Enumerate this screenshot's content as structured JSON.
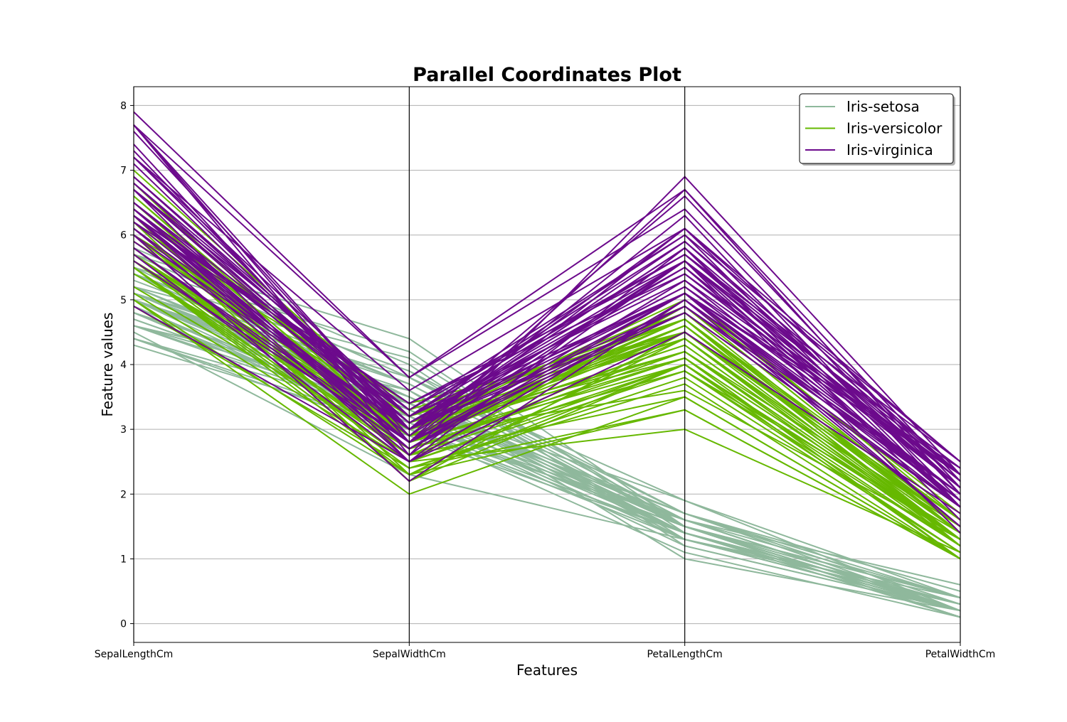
{
  "chart_data": {
    "type": "parallel_coordinates",
    "title": "Parallel Coordinates Plot",
    "xlabel": "Features",
    "ylabel": "Feature values",
    "categories": [
      "SepalLengthCm",
      "SepalWidthCm",
      "PetalLengthCm",
      "PetalWidthCm"
    ],
    "ylim": [
      -0.29,
      8.29
    ],
    "yticks": [
      "0",
      "1",
      "2",
      "3",
      "4",
      "5",
      "6",
      "7",
      "8"
    ],
    "grid": true,
    "legend_position": "top-right",
    "series": [
      {
        "name": "Iris-setosa",
        "color": "#8fb89c",
        "rows": [
          [
            5.1,
            3.5,
            1.4,
            0.2
          ],
          [
            4.9,
            3.0,
            1.4,
            0.2
          ],
          [
            4.7,
            3.2,
            1.3,
            0.2
          ],
          [
            4.6,
            3.1,
            1.5,
            0.2
          ],
          [
            5.0,
            3.6,
            1.4,
            0.2
          ],
          [
            5.4,
            3.9,
            1.7,
            0.4
          ],
          [
            4.6,
            3.4,
            1.4,
            0.3
          ],
          [
            5.0,
            3.4,
            1.5,
            0.2
          ],
          [
            4.4,
            2.9,
            1.4,
            0.2
          ],
          [
            4.9,
            3.1,
            1.5,
            0.1
          ],
          [
            5.4,
            3.7,
            1.5,
            0.2
          ],
          [
            4.8,
            3.4,
            1.6,
            0.2
          ],
          [
            4.8,
            3.0,
            1.4,
            0.1
          ],
          [
            4.3,
            3.0,
            1.1,
            0.1
          ],
          [
            5.8,
            4.0,
            1.2,
            0.2
          ],
          [
            5.7,
            4.4,
            1.5,
            0.4
          ],
          [
            5.4,
            3.9,
            1.3,
            0.4
          ],
          [
            5.1,
            3.5,
            1.4,
            0.3
          ],
          [
            5.7,
            3.8,
            1.7,
            0.3
          ],
          [
            5.1,
            3.8,
            1.5,
            0.3
          ],
          [
            5.4,
            3.4,
            1.7,
            0.2
          ],
          [
            5.1,
            3.7,
            1.5,
            0.4
          ],
          [
            4.6,
            3.6,
            1.0,
            0.2
          ],
          [
            5.1,
            3.3,
            1.7,
            0.5
          ],
          [
            4.8,
            3.4,
            1.9,
            0.2
          ],
          [
            5.0,
            3.0,
            1.6,
            0.2
          ],
          [
            5.0,
            3.4,
            1.6,
            0.4
          ],
          [
            5.2,
            3.5,
            1.5,
            0.2
          ],
          [
            5.2,
            3.4,
            1.4,
            0.2
          ],
          [
            4.7,
            3.2,
            1.6,
            0.2
          ],
          [
            4.8,
            3.1,
            1.6,
            0.2
          ],
          [
            5.4,
            3.4,
            1.5,
            0.4
          ],
          [
            5.2,
            4.1,
            1.5,
            0.1
          ],
          [
            5.5,
            4.2,
            1.4,
            0.2
          ],
          [
            4.9,
            3.1,
            1.5,
            0.1
          ],
          [
            5.0,
            3.2,
            1.2,
            0.2
          ],
          [
            5.5,
            3.5,
            1.3,
            0.2
          ],
          [
            4.9,
            3.1,
            1.5,
            0.1
          ],
          [
            4.4,
            3.0,
            1.3,
            0.2
          ],
          [
            5.1,
            3.4,
            1.5,
            0.2
          ],
          [
            5.0,
            3.5,
            1.3,
            0.3
          ],
          [
            4.5,
            2.3,
            1.3,
            0.3
          ],
          [
            4.4,
            3.2,
            1.3,
            0.2
          ],
          [
            5.0,
            3.5,
            1.6,
            0.6
          ],
          [
            5.1,
            3.8,
            1.9,
            0.4
          ],
          [
            4.8,
            3.0,
            1.4,
            0.3
          ],
          [
            5.1,
            3.8,
            1.6,
            0.2
          ],
          [
            4.6,
            3.2,
            1.4,
            0.2
          ],
          [
            5.3,
            3.7,
            1.5,
            0.2
          ],
          [
            5.0,
            3.3,
            1.4,
            0.2
          ]
        ]
      },
      {
        "name": "Iris-versicolor",
        "color": "#66b800",
        "rows": [
          [
            7.0,
            3.2,
            4.7,
            1.4
          ],
          [
            6.4,
            3.2,
            4.5,
            1.5
          ],
          [
            6.9,
            3.1,
            4.9,
            1.5
          ],
          [
            5.5,
            2.3,
            4.0,
            1.3
          ],
          [
            6.5,
            2.8,
            4.6,
            1.5
          ],
          [
            5.7,
            2.8,
            4.5,
            1.3
          ],
          [
            6.3,
            3.3,
            4.7,
            1.6
          ],
          [
            4.9,
            2.4,
            3.3,
            1.0
          ],
          [
            6.6,
            2.9,
            4.6,
            1.3
          ],
          [
            5.2,
            2.7,
            3.9,
            1.4
          ],
          [
            5.0,
            2.0,
            3.5,
            1.0
          ],
          [
            5.9,
            3.0,
            4.2,
            1.5
          ],
          [
            6.0,
            2.2,
            4.0,
            1.0
          ],
          [
            6.1,
            2.9,
            4.7,
            1.4
          ],
          [
            5.6,
            2.9,
            3.6,
            1.3
          ],
          [
            6.7,
            3.1,
            4.4,
            1.4
          ],
          [
            5.6,
            3.0,
            4.5,
            1.5
          ],
          [
            5.8,
            2.7,
            4.1,
            1.0
          ],
          [
            6.2,
            2.2,
            4.5,
            1.5
          ],
          [
            5.6,
            2.5,
            3.9,
            1.1
          ],
          [
            5.9,
            3.2,
            4.8,
            1.8
          ],
          [
            6.1,
            2.8,
            4.0,
            1.3
          ],
          [
            6.3,
            2.5,
            4.9,
            1.5
          ],
          [
            6.1,
            2.8,
            4.7,
            1.2
          ],
          [
            6.4,
            2.9,
            4.3,
            1.3
          ],
          [
            6.6,
            3.0,
            4.4,
            1.4
          ],
          [
            6.8,
            2.8,
            4.8,
            1.4
          ],
          [
            6.7,
            3.0,
            5.0,
            1.7
          ],
          [
            6.0,
            2.9,
            4.5,
            1.5
          ],
          [
            5.7,
            2.6,
            3.5,
            1.0
          ],
          [
            5.5,
            2.4,
            3.8,
            1.1
          ],
          [
            5.5,
            2.4,
            3.7,
            1.0
          ],
          [
            5.8,
            2.7,
            3.9,
            1.2
          ],
          [
            6.0,
            2.7,
            5.1,
            1.6
          ],
          [
            5.4,
            3.0,
            4.5,
            1.5
          ],
          [
            6.0,
            3.4,
            4.5,
            1.6
          ],
          [
            6.7,
            3.1,
            4.7,
            1.5
          ],
          [
            6.3,
            2.3,
            4.4,
            1.3
          ],
          [
            5.6,
            3.0,
            4.1,
            1.3
          ],
          [
            5.5,
            2.5,
            4.0,
            1.3
          ],
          [
            5.5,
            2.6,
            4.4,
            1.2
          ],
          [
            6.1,
            3.0,
            4.6,
            1.4
          ],
          [
            5.8,
            2.6,
            4.0,
            1.2
          ],
          [
            5.0,
            2.3,
            3.3,
            1.0
          ],
          [
            5.6,
            2.7,
            4.2,
            1.3
          ],
          [
            5.7,
            3.0,
            4.2,
            1.2
          ],
          [
            5.7,
            2.9,
            4.2,
            1.3
          ],
          [
            6.2,
            2.9,
            4.3,
            1.3
          ],
          [
            5.1,
            2.5,
            3.0,
            1.1
          ],
          [
            5.7,
            2.8,
            4.1,
            1.3
          ]
        ]
      },
      {
        "name": "Iris-virginica",
        "color": "#6c0a8c",
        "rows": [
          [
            6.3,
            3.3,
            6.0,
            2.5
          ],
          [
            5.8,
            2.7,
            5.1,
            1.9
          ],
          [
            7.1,
            3.0,
            5.9,
            2.1
          ],
          [
            6.3,
            2.9,
            5.6,
            1.8
          ],
          [
            6.5,
            3.0,
            5.8,
            2.2
          ],
          [
            7.6,
            3.0,
            6.6,
            2.1
          ],
          [
            4.9,
            2.5,
            4.5,
            1.7
          ],
          [
            7.3,
            2.9,
            6.3,
            1.8
          ],
          [
            6.7,
            2.5,
            5.8,
            1.8
          ],
          [
            7.2,
            3.6,
            6.1,
            2.5
          ],
          [
            6.5,
            3.2,
            5.1,
            2.0
          ],
          [
            6.4,
            2.7,
            5.3,
            1.9
          ],
          [
            6.8,
            3.0,
            5.5,
            2.1
          ],
          [
            5.7,
            2.5,
            5.0,
            2.0
          ],
          [
            5.8,
            2.8,
            5.1,
            2.4
          ],
          [
            6.4,
            3.2,
            5.3,
            2.3
          ],
          [
            6.5,
            3.0,
            5.5,
            1.8
          ],
          [
            7.7,
            3.8,
            6.7,
            2.2
          ],
          [
            7.7,
            2.6,
            6.9,
            2.3
          ],
          [
            6.0,
            2.2,
            5.0,
            1.5
          ],
          [
            6.9,
            3.2,
            5.7,
            2.3
          ],
          [
            5.6,
            2.8,
            4.9,
            2.0
          ],
          [
            7.7,
            2.8,
            6.7,
            2.0
          ],
          [
            6.3,
            2.7,
            4.9,
            1.8
          ],
          [
            6.7,
            3.3,
            5.7,
            2.1
          ],
          [
            7.2,
            3.2,
            6.0,
            1.8
          ],
          [
            6.2,
            2.8,
            4.8,
            1.8
          ],
          [
            6.1,
            3.0,
            4.9,
            1.8
          ],
          [
            6.4,
            2.8,
            5.6,
            2.1
          ],
          [
            7.2,
            3.0,
            5.8,
            1.6
          ],
          [
            7.4,
            2.8,
            6.1,
            1.9
          ],
          [
            7.9,
            3.8,
            6.4,
            2.0
          ],
          [
            6.4,
            2.8,
            5.6,
            2.2
          ],
          [
            6.3,
            2.8,
            5.1,
            1.5
          ],
          [
            6.1,
            2.6,
            5.6,
            1.4
          ],
          [
            7.7,
            3.0,
            6.1,
            2.3
          ],
          [
            6.3,
            3.4,
            5.6,
            2.4
          ],
          [
            6.4,
            3.1,
            5.5,
            1.8
          ],
          [
            6.0,
            3.0,
            4.8,
            1.8
          ],
          [
            6.9,
            3.1,
            5.4,
            2.1
          ],
          [
            6.7,
            3.1,
            5.6,
            2.4
          ],
          [
            6.9,
            3.1,
            5.1,
            2.3
          ],
          [
            5.8,
            2.7,
            5.1,
            1.9
          ],
          [
            6.8,
            3.2,
            5.9,
            2.3
          ],
          [
            6.7,
            3.3,
            5.7,
            2.5
          ],
          [
            6.7,
            3.0,
            5.2,
            2.3
          ],
          [
            6.3,
            2.5,
            5.0,
            1.9
          ],
          [
            6.5,
            3.0,
            5.2,
            2.0
          ],
          [
            6.2,
            3.4,
            5.4,
            2.3
          ],
          [
            5.9,
            3.0,
            5.1,
            1.8
          ]
        ]
      }
    ]
  }
}
